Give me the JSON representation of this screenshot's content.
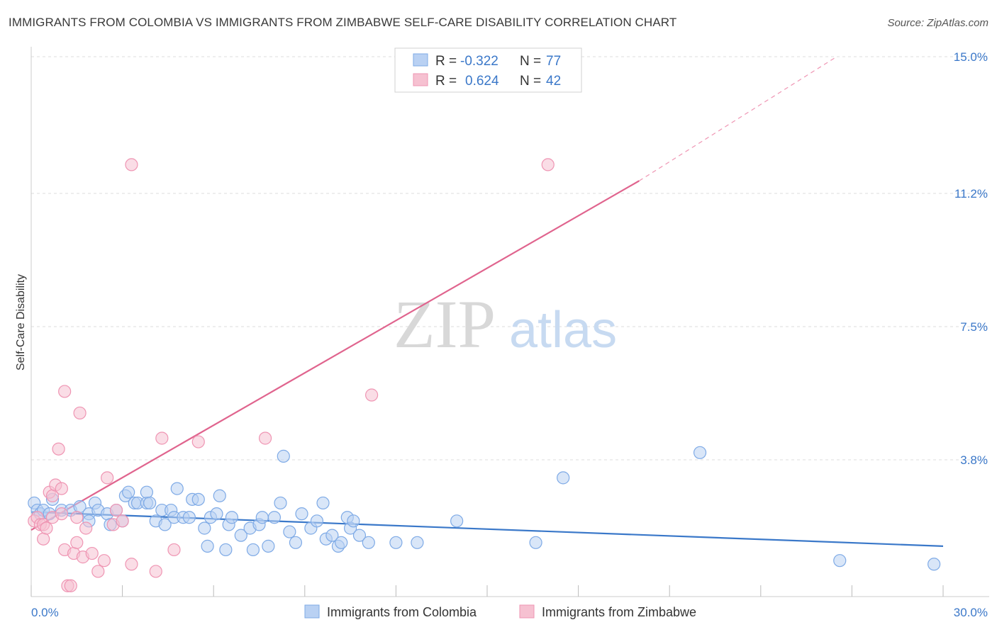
{
  "title": "IMMIGRANTS FROM COLOMBIA VS IMMIGRANTS FROM ZIMBABWE SELF-CARE DISABILITY CORRELATION CHART",
  "source": "Source: ZipAtlas.com",
  "watermark": {
    "zip": "ZIP",
    "atlas": "atlas"
  },
  "colors": {
    "colombia": "#3a78c9",
    "colombia_fill": "#b9d1f3",
    "colombia_stroke": "#7eaae6",
    "zimbabwe": "#e0648e",
    "zimbabwe_fill": "#f6c1d1",
    "zimbabwe_stroke": "#ef95b3",
    "tick_label": "#3b78c9",
    "grid": "#dddddd"
  },
  "legend": {
    "rows": [
      {
        "r_label": "R =",
        "r_value": "-0.322",
        "n_label": "N =",
        "n_value": "77"
      },
      {
        "r_label": "R =",
        "r_value": "0.624",
        "n_label": "N =",
        "n_value": "42"
      }
    ]
  },
  "chart_data": {
    "type": "scatter",
    "title": "IMMIGRANTS FROM COLOMBIA VS IMMIGRANTS FROM ZIMBABWE SELF-CARE DISABILITY CORRELATION CHART",
    "xlabel": "",
    "ylabel": "Self-Care Disability",
    "xlim": [
      0,
      30
    ],
    "ylim": [
      0,
      15
    ],
    "x_tick_labels": [
      {
        "value": 0,
        "label": "0.0%"
      },
      {
        "value": 30,
        "label": "30.0%"
      }
    ],
    "y_tick_labels": [
      {
        "value": 3.8,
        "label": "3.8%"
      },
      {
        "value": 7.5,
        "label": "7.5%"
      },
      {
        "value": 11.2,
        "label": "11.2%"
      },
      {
        "value": 15.0,
        "label": "15.0%"
      }
    ],
    "grid": true,
    "legend_position": "top-center",
    "series": [
      {
        "name": "Immigrants from Colombia",
        "points": [
          [
            0.1,
            2.6
          ],
          [
            0.2,
            2.4
          ],
          [
            0.3,
            2.3
          ],
          [
            0.4,
            2.4
          ],
          [
            0.6,
            2.3
          ],
          [
            0.7,
            2.7
          ],
          [
            1.0,
            2.4
          ],
          [
            1.3,
            2.4
          ],
          [
            1.6,
            2.5
          ],
          [
            1.9,
            2.3
          ],
          [
            1.9,
            2.1
          ],
          [
            2.1,
            2.6
          ],
          [
            2.2,
            2.4
          ],
          [
            2.5,
            2.3
          ],
          [
            2.6,
            2.0
          ],
          [
            2.8,
            2.4
          ],
          [
            3.0,
            2.1
          ],
          [
            3.1,
            2.8
          ],
          [
            3.2,
            2.9
          ],
          [
            3.4,
            2.6
          ],
          [
            3.5,
            2.6
          ],
          [
            3.8,
            2.6
          ],
          [
            3.8,
            2.9
          ],
          [
            3.9,
            2.6
          ],
          [
            4.1,
            2.1
          ],
          [
            4.3,
            2.4
          ],
          [
            4.4,
            2.0
          ],
          [
            4.6,
            2.4
          ],
          [
            4.7,
            2.2
          ],
          [
            4.8,
            3.0
          ],
          [
            5.0,
            2.2
          ],
          [
            5.2,
            2.2
          ],
          [
            5.3,
            2.7
          ],
          [
            5.5,
            2.7
          ],
          [
            5.7,
            1.9
          ],
          [
            5.8,
            1.4
          ],
          [
            5.9,
            2.2
          ],
          [
            6.1,
            2.3
          ],
          [
            6.2,
            2.8
          ],
          [
            6.4,
            1.3
          ],
          [
            6.5,
            2.0
          ],
          [
            6.6,
            2.2
          ],
          [
            6.9,
            1.7
          ],
          [
            7.2,
            1.9
          ],
          [
            7.3,
            1.3
          ],
          [
            7.5,
            2.0
          ],
          [
            7.6,
            2.2
          ],
          [
            7.8,
            1.4
          ],
          [
            8.0,
            2.2
          ],
          [
            8.2,
            2.6
          ],
          [
            8.3,
            3.9
          ],
          [
            8.5,
            1.8
          ],
          [
            8.7,
            1.5
          ],
          [
            8.9,
            2.3
          ],
          [
            9.2,
            1.9
          ],
          [
            9.4,
            2.1
          ],
          [
            9.6,
            2.6
          ],
          [
            9.7,
            1.6
          ],
          [
            9.9,
            1.7
          ],
          [
            10.1,
            1.4
          ],
          [
            10.2,
            1.5
          ],
          [
            10.4,
            2.2
          ],
          [
            10.5,
            1.9
          ],
          [
            10.6,
            2.1
          ],
          [
            10.8,
            1.7
          ],
          [
            11.1,
            1.5
          ],
          [
            12.0,
            1.5
          ],
          [
            12.7,
            1.5
          ],
          [
            14.0,
            2.1
          ],
          [
            16.6,
            1.5
          ],
          [
            17.5,
            3.3
          ],
          [
            22.0,
            4.0
          ],
          [
            26.6,
            1.0
          ],
          [
            29.7,
            0.9
          ]
        ]
      },
      {
        "name": "Immigrants from Zimbabwe",
        "points": [
          [
            0.1,
            2.1
          ],
          [
            0.2,
            2.2
          ],
          [
            0.3,
            2.0
          ],
          [
            0.4,
            2.0
          ],
          [
            0.4,
            1.6
          ],
          [
            0.5,
            1.9
          ],
          [
            0.6,
            2.9
          ],
          [
            0.7,
            2.2
          ],
          [
            0.7,
            2.8
          ],
          [
            0.8,
            3.1
          ],
          [
            0.9,
            4.1
          ],
          [
            1.0,
            3.0
          ],
          [
            1.0,
            2.3
          ],
          [
            1.1,
            1.3
          ],
          [
            1.1,
            5.7
          ],
          [
            1.2,
            0.3
          ],
          [
            1.3,
            0.3
          ],
          [
            1.4,
            1.2
          ],
          [
            1.5,
            1.5
          ],
          [
            1.5,
            2.2
          ],
          [
            1.6,
            5.1
          ],
          [
            1.7,
            1.1
          ],
          [
            1.8,
            1.9
          ],
          [
            2.0,
            1.2
          ],
          [
            2.2,
            0.7
          ],
          [
            2.4,
            1.0
          ],
          [
            2.5,
            3.3
          ],
          [
            2.7,
            2.0
          ],
          [
            2.8,
            2.4
          ],
          [
            3.0,
            2.1
          ],
          [
            3.3,
            0.9
          ],
          [
            3.3,
            12.0
          ],
          [
            4.1,
            0.7
          ],
          [
            4.3,
            4.4
          ],
          [
            4.7,
            1.3
          ],
          [
            5.5,
            4.3
          ],
          [
            7.7,
            4.4
          ],
          [
            11.2,
            5.6
          ],
          [
            17.0,
            12.0
          ]
        ]
      }
    ],
    "trendlines": [
      {
        "series": "Immigrants from Colombia",
        "x": [
          0,
          30
        ],
        "y": [
          2.35,
          1.4
        ],
        "dashed_extension": false
      },
      {
        "series": "Immigrants from Zimbabwe",
        "x": [
          0,
          20.0
        ],
        "y": [
          1.85,
          11.55
        ],
        "dashed_to": [
          26.5,
          15.0
        ]
      }
    ]
  },
  "bottom_legend": [
    {
      "label": "Immigrants from Colombia"
    },
    {
      "label": "Immigrants from Zimbabwe"
    }
  ]
}
